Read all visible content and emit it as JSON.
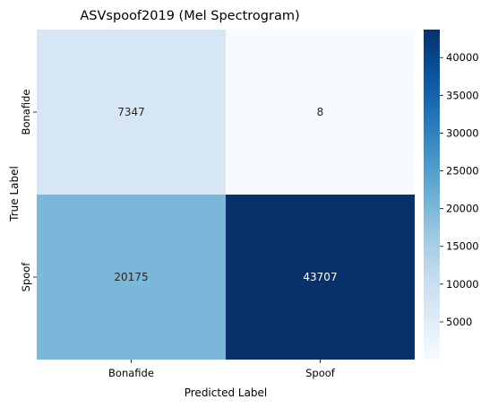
{
  "chart_data": {
    "type": "heatmap",
    "title": "ASVspoof2019 (Mel Spectrogram)",
    "xlabel": "Predicted Label",
    "ylabel": "True Label",
    "x_categories": [
      "Bonafide",
      "Spoof"
    ],
    "y_categories": [
      "Bonafide",
      "Spoof"
    ],
    "values": [
      [
        7347,
        8
      ],
      [
        20175,
        43707
      ]
    ],
    "colormap": "Blues",
    "colorbar": {
      "range": [
        8,
        43707
      ],
      "ticks": [
        5000,
        10000,
        15000,
        20000,
        25000,
        30000,
        35000,
        40000
      ]
    },
    "colors": {
      "low": "#f7fbff",
      "high": "#08306b",
      "text_dark": "#262626",
      "text_light": "#ffffff"
    }
  }
}
